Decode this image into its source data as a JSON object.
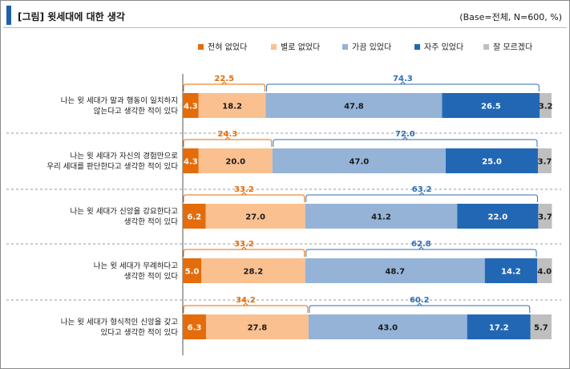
{
  "title": "[그림] 윗세대에 대한 생각",
  "base_note": "(Base=전체, N=600, %)",
  "colors": {
    "accent": "#1F5FAE",
    "never": "#E46C0A",
    "rarely": "#FAC090",
    "sometimes": "#95B3D7",
    "often": "#2267B4",
    "dunno": "#BFBFBF",
    "orange_text": "#E46C0A",
    "blue_text": "#2F6DB5"
  },
  "chart_data": {
    "type": "stacked-bar-horizontal",
    "unit": "%",
    "legend": [
      "전혀 없었다",
      "별로 없었다",
      "가끔 있었다",
      "자주 있었다",
      "잘 모르겠다"
    ],
    "categories": [
      [
        "나는 윗 세대가 말과 행동이 일치하지",
        "않는다고 생각한 적이 있다"
      ],
      [
        "나는 윗 세대가 자신의 경험만으로",
        "우리 세대를 판단한다고 생각한 적이 있다"
      ],
      [
        "나는 윗 세대가 신앙을 강요한다고",
        "생각한 적이 있다"
      ],
      [
        "나는 윗 세대가 무례하다고",
        "생각한 적이 있다"
      ],
      [
        "나는 윗 세대가 형식적인 신앙을 갖고",
        "있다고 생각한 적이 있다"
      ]
    ],
    "series": [
      {
        "name": "전혀 없었다",
        "values": [
          4.3,
          4.3,
          6.2,
          5.0,
          6.3
        ]
      },
      {
        "name": "별로 없었다",
        "values": [
          18.2,
          20.0,
          27.0,
          28.2,
          27.8
        ]
      },
      {
        "name": "가끔 있었다",
        "values": [
          47.8,
          47.0,
          41.2,
          48.7,
          43.0
        ]
      },
      {
        "name": "자주 있었다",
        "values": [
          26.5,
          25.0,
          22.0,
          14.2,
          17.2
        ]
      },
      {
        "name": "잘 모르겠다",
        "values": [
          3.2,
          3.7,
          3.7,
          4.0,
          5.7
        ]
      }
    ],
    "totals_negative": [
      22.5,
      24.3,
      33.2,
      33.2,
      34.2
    ],
    "totals_positive": [
      74.3,
      72.0,
      63.2,
      62.8,
      60.2
    ],
    "xlim": [
      0,
      100
    ]
  }
}
